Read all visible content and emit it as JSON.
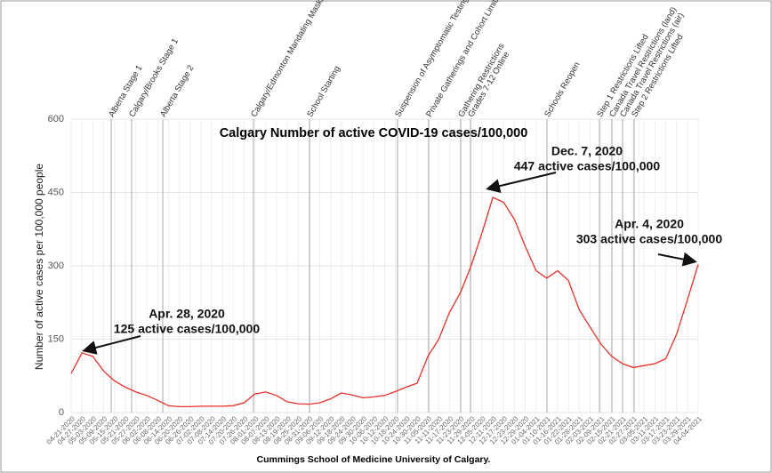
{
  "chart_data": {
    "type": "line",
    "title": "Calgary Number of active COVID-19 cases/100,000",
    "y_label": "Number of active cases per 100,000 people",
    "caption": "Cummings School of Medicine University of Calgary.",
    "categories": [
      "04-21-2020",
      "04-27-2020",
      "05-03-2020",
      "05-09-2020",
      "05-15-2020",
      "05-21-2020",
      "05-27-2020",
      "06-02-2020",
      "06-08-2020",
      "06-14-2020",
      "06-20-2020",
      "06-26-2020",
      "07-02-2020",
      "07-08-2020",
      "07-14-2020",
      "07-20-2020",
      "07-26-2020",
      "08-01-2020",
      "08-07-2020",
      "08-13-2020",
      "08-19-2020",
      "08-25-2020",
      "08-31-2020",
      "09-06-2020",
      "09-12-2020",
      "09-18-2020",
      "09-24-2020",
      "09-30-2020",
      "10-06-2020",
      "10-12-2020",
      "10-18-2020",
      "10-24-2020",
      "10-30-2020",
      "11-05-2020",
      "11-11-2020",
      "11-17-2020",
      "11-23-2020",
      "11-29-2020",
      "12-05-2020",
      "12-11-2020",
      "12-17-2020",
      "12-23-2020",
      "12-29-2020",
      "01-04-2021",
      "01-10-2021",
      "01-16-2021",
      "01-22-2021",
      "01-28-2021",
      "02-03-2021",
      "02-09-2021",
      "02-15-2021",
      "02-21-2021",
      "02-27-2021",
      "03-05-2021",
      "03-11-2021",
      "03-17-2021",
      "03-23-2021",
      "03-29-2021",
      "04-04-2021"
    ],
    "values": [
      80,
      122,
      115,
      85,
      65,
      52,
      42,
      35,
      25,
      14,
      12,
      12,
      13,
      13,
      13,
      14,
      20,
      38,
      42,
      35,
      22,
      18,
      17,
      20,
      28,
      40,
      36,
      30,
      32,
      35,
      43,
      52,
      60,
      115,
      150,
      205,
      245,
      300,
      367,
      440,
      430,
      395,
      340,
      290,
      275,
      290,
      270,
      210,
      175,
      140,
      115,
      100,
      92,
      96,
      100,
      110,
      160,
      230,
      303
    ],
    "color": "#e8302a",
    "ylim": [
      0,
      600
    ],
    "yticks": [
      0,
      150,
      300,
      450,
      600
    ],
    "grid": true,
    "events": [
      "Alberta Stage 1",
      "Calgary/Brooks Stage 1",
      "Alberta Stage 2",
      "Calgary/Edmonton Mandating Masks",
      "School Starting",
      "Suspension of Asymptomatic Testing",
      "Private Gatherings and Cohort Limits",
      "Gathering Restrictions",
      "Grades 7-12 Online",
      "Schools Reopen",
      "Step 1 Restrictions Lifted",
      "Canada Travel Restrictions (land)",
      "Canada Travel Restrictions (air)",
      "Step 2 Restrictions Lifted"
    ],
    "annotations": [
      {
        "lines": [
          "Apr. 28, 2020",
          "125 active cases/100,000"
        ]
      },
      {
        "lines": [
          "Dec. 7, 2020",
          "447 active cases/100,000"
        ]
      },
      {
        "lines": [
          "Apr. 4, 2020",
          "303 active cases/100,000"
        ]
      }
    ]
  }
}
